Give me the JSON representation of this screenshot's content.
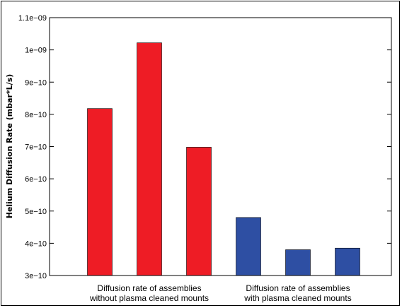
{
  "chart_data": {
    "type": "bar",
    "ylabel": "Helium Diffusion Rate (mbar*L/s)",
    "y_scale": "linear",
    "ylim": [
      3e-10,
      1.1e-09
    ],
    "y_ticks": [
      3e-10,
      4e-10,
      5e-10,
      6e-10,
      7e-10,
      8e-10,
      9e-10,
      1e-09,
      1.1e-09
    ],
    "y_tick_labels": [
      "3e−10",
      "4e−10",
      "5e−10",
      "6e−10",
      "7e−10",
      "8e−10",
      "9e−10",
      "1e−09",
      "1.1e−09"
    ],
    "grid": false,
    "groups": [
      {
        "label_lines": [
          "Diffusion rate of assemblies",
          "without plasma cleaned mounts"
        ],
        "color": "#ee1c25",
        "values": [
          8.18e-10,
          1.022e-09,
          6.98e-10
        ]
      },
      {
        "label_lines": [
          "Diffusion rate of assemblies",
          "with plasma cleaned mounts"
        ],
        "color": "#2e4fa3",
        "values": [
          4.8e-10,
          3.8e-10,
          3.85e-10
        ]
      }
    ]
  }
}
